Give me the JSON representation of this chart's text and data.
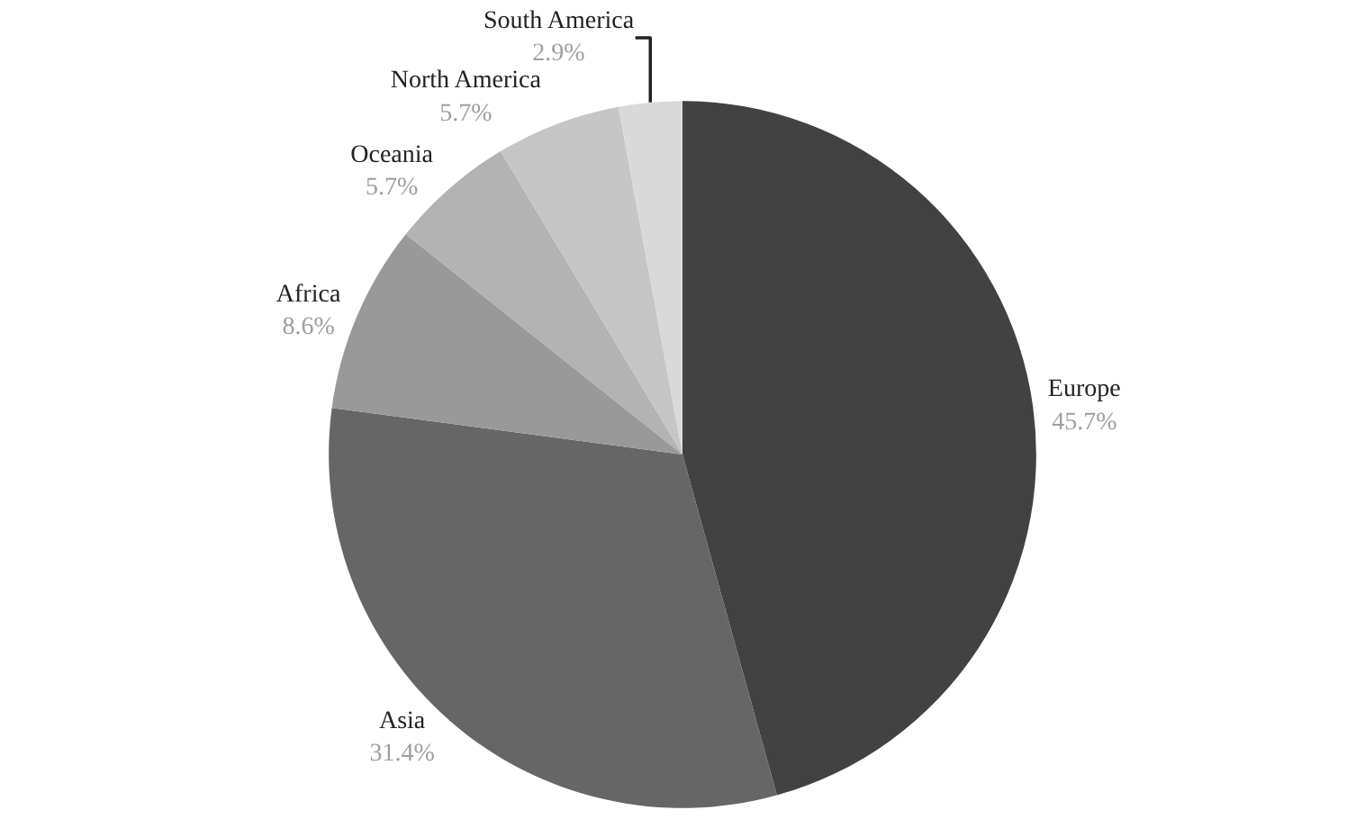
{
  "chart_data": {
    "type": "pie",
    "categories": [
      "Europe",
      "Asia",
      "Africa",
      "Oceania",
      "North America",
      "South America"
    ],
    "values": [
      45.7,
      31.4,
      8.6,
      5.7,
      5.7,
      2.9
    ],
    "value_labels": [
      "45.7%",
      "31.4%",
      "8.6%",
      "5.7%",
      "5.7%",
      "2.9%"
    ],
    "colors": [
      "#424242",
      "#666666",
      "#999999",
      "#b3b3b3",
      "#c6c6c6",
      "#d9d9d9"
    ],
    "legend": false
  }
}
